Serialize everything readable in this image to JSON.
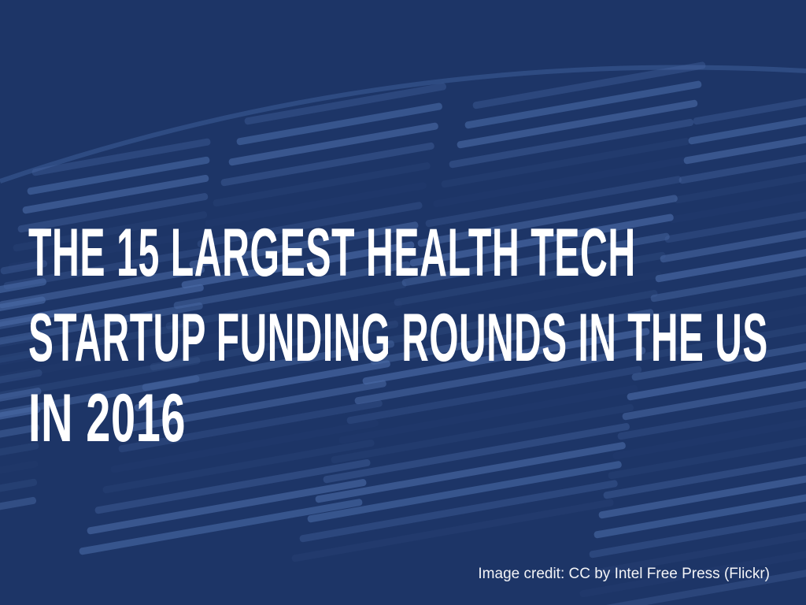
{
  "slide": {
    "title_lines": [
      "THE 15 LARGEST HEALTH TECH",
      "STARTUP FUNDING ROUNDS IN THE US",
      "IN 2016"
    ],
    "image_credit": "Image credit: CC by Intel Free Press (Flickr)",
    "background_color": "#1d3567",
    "background_image": "silicon wafer with chip structures, blue tinted"
  }
}
